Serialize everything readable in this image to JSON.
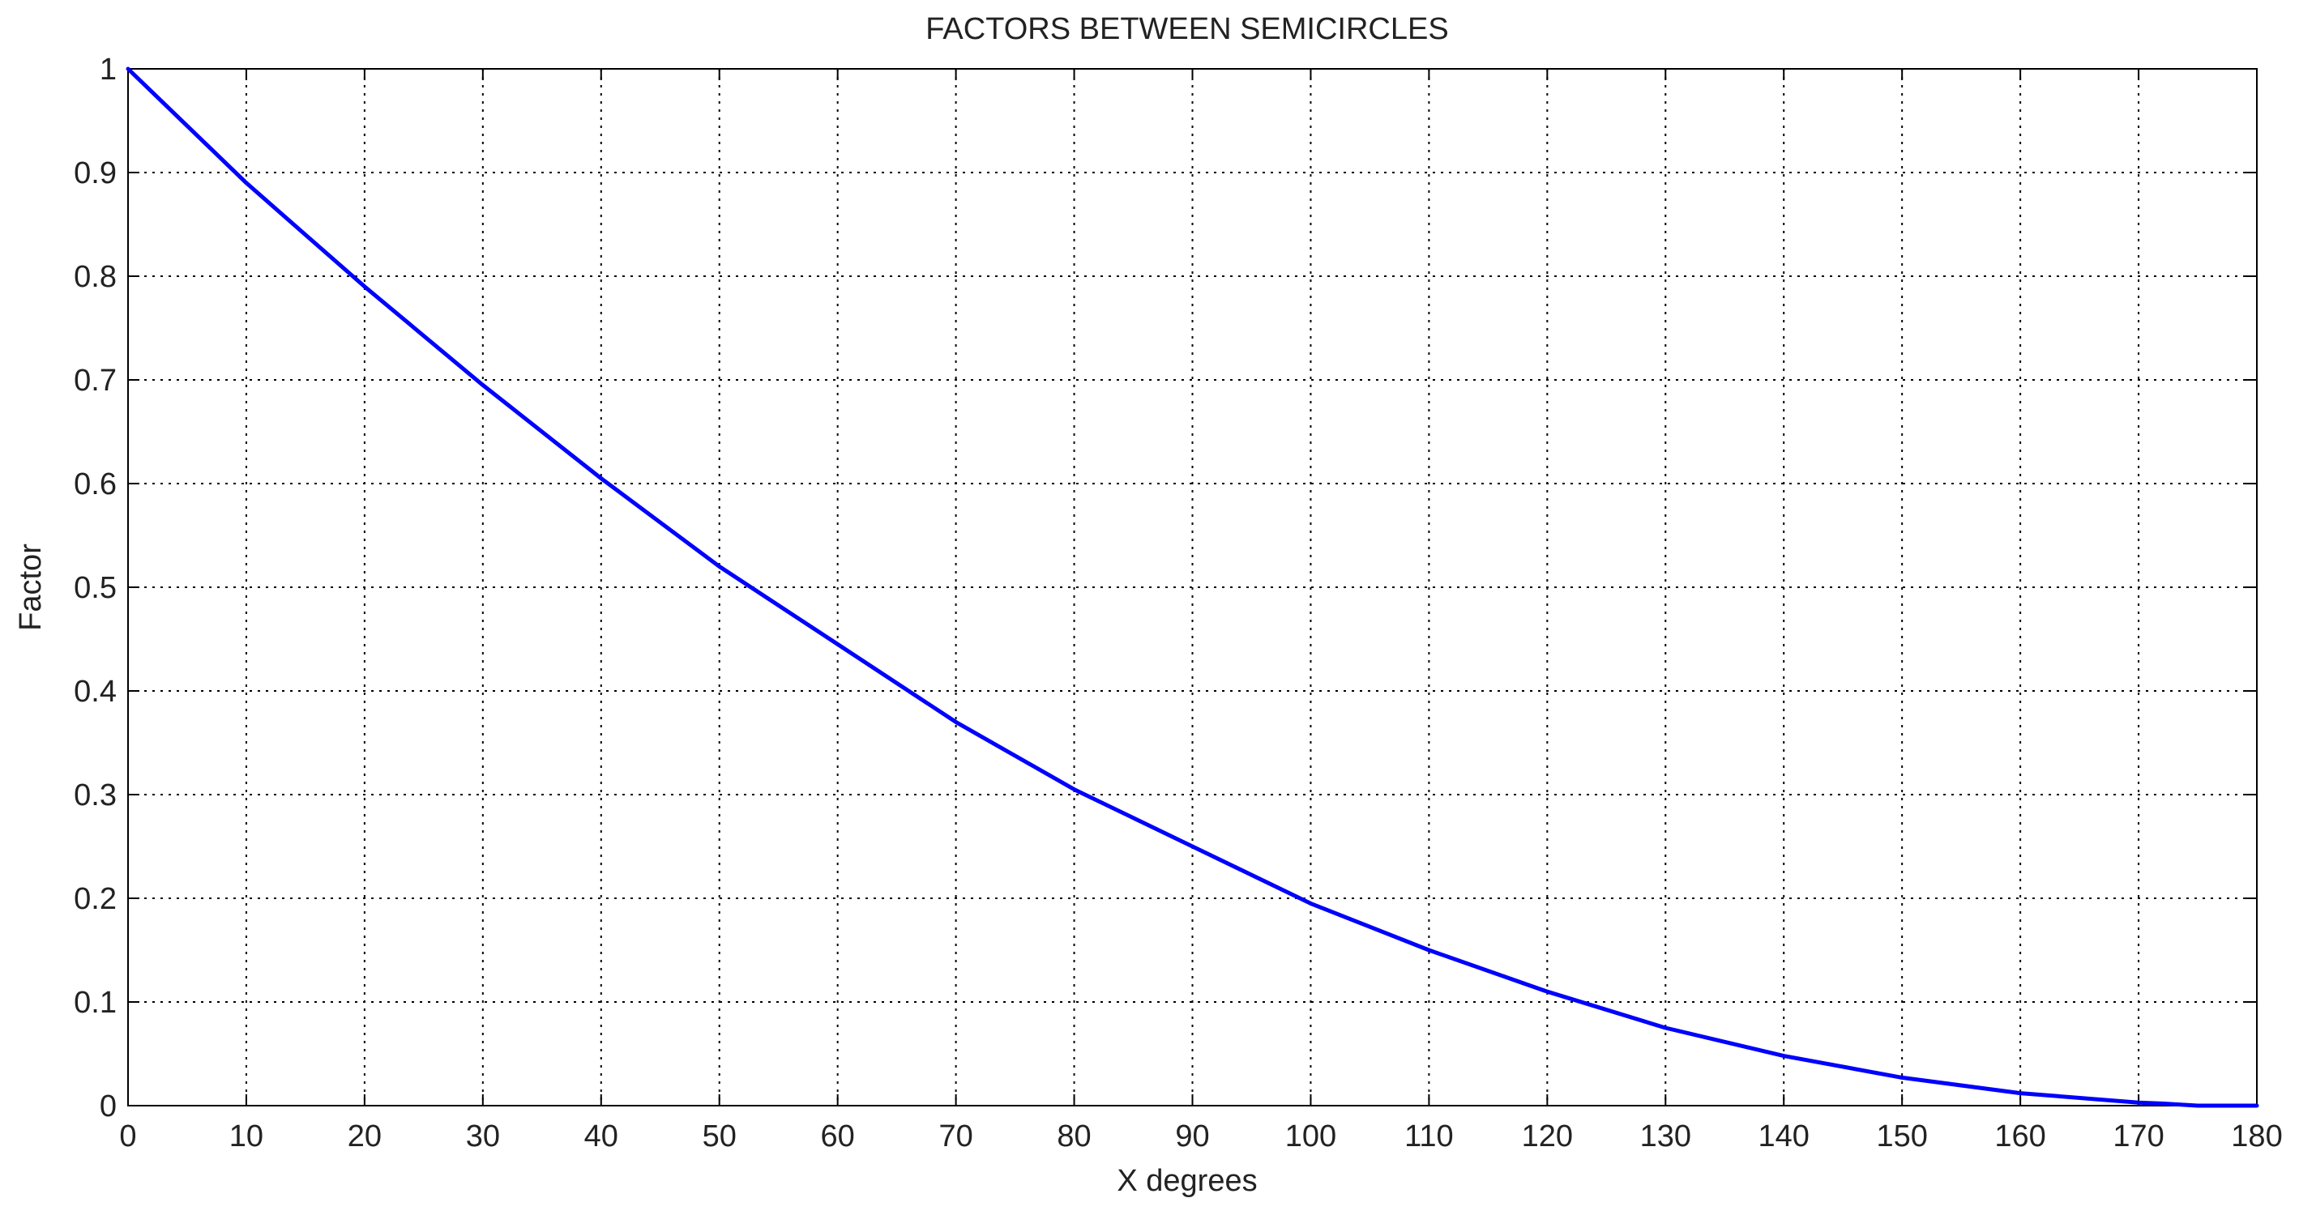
{
  "chart_data": {
    "type": "line",
    "title": "FACTORS BETWEEN SEMICIRCLES",
    "xlabel": "X degrees",
    "ylabel": "Factor",
    "xlim": [
      0,
      180
    ],
    "ylim": [
      0,
      1
    ],
    "xticks": [
      0,
      10,
      20,
      30,
      40,
      50,
      60,
      70,
      80,
      90,
      100,
      110,
      120,
      130,
      140,
      150,
      160,
      170,
      180
    ],
    "yticks": [
      0,
      0.1,
      0.2,
      0.3,
      0.4,
      0.5,
      0.6,
      0.7,
      0.8,
      0.9,
      1
    ],
    "xtick_labels": [
      "0",
      "10",
      "20",
      "30",
      "40",
      "50",
      "60",
      "70",
      "80",
      "90",
      "100",
      "110",
      "120",
      "130",
      "140",
      "150",
      "160",
      "170",
      "180"
    ],
    "ytick_labels": [
      "0",
      "0.1",
      "0.2",
      "0.3",
      "0.4",
      "0.5",
      "0.6",
      "0.7",
      "0.8",
      "0.9",
      "1"
    ],
    "grid": true,
    "series": [
      {
        "color": "#0000ff",
        "x": [
          0,
          10,
          20,
          30,
          40,
          50,
          60,
          70,
          80,
          90,
          100,
          110,
          120,
          130,
          140,
          150,
          160,
          170,
          172,
          175,
          180
        ],
        "y": [
          1.0,
          0.89,
          0.79,
          0.695,
          0.605,
          0.52,
          0.445,
          0.37,
          0.305,
          0.25,
          0.195,
          0.15,
          0.11,
          0.075,
          0.048,
          0.027,
          0.012,
          0.003,
          0.002,
          0.0,
          0.0
        ]
      }
    ]
  }
}
